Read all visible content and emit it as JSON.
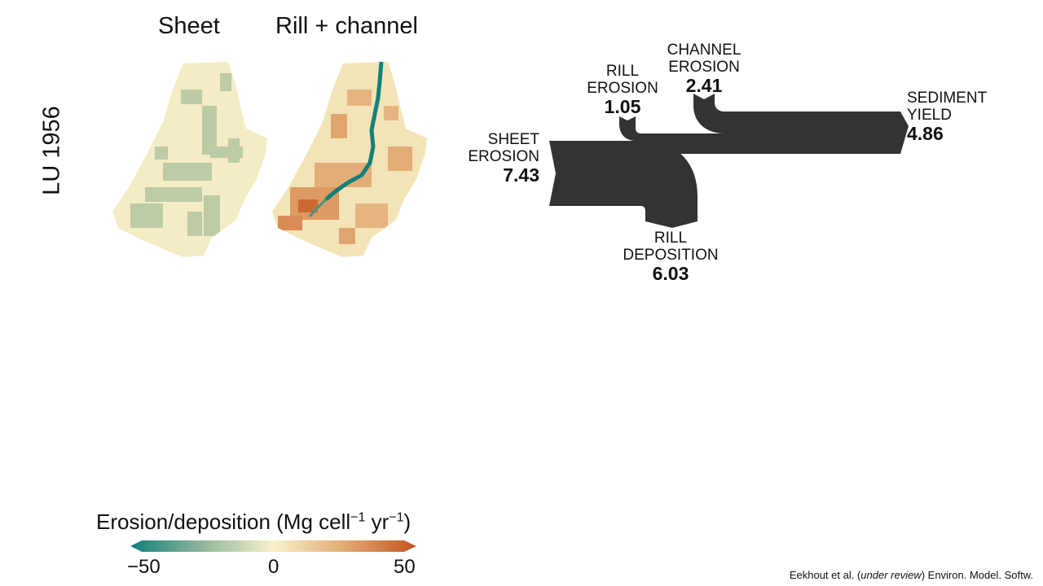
{
  "maps": {
    "row_label": "LU 1956",
    "sheet_title": "Sheet",
    "rill_title": "Rill + channel"
  },
  "flow_diagram": {
    "sheet_erosion": {
      "name": "SHEET EROSION",
      "line1": "SHEET",
      "line2": "EROSION",
      "value": 7.43,
      "value_text": "7.43"
    },
    "rill_erosion": {
      "name": "RILL EROSION",
      "line1": "RILL",
      "line2": "EROSION",
      "value": 1.05,
      "value_text": "1.05"
    },
    "channel_erosion": {
      "name": "CHANNEL EROSION",
      "line1": "CHANNEL",
      "line2": "EROSION",
      "value": 2.41,
      "value_text": "2.41"
    },
    "sediment_yield": {
      "name": "SEDIMENT YIELD",
      "line1": "SEDIMENT",
      "line2": "YIELD",
      "value": 4.86,
      "value_text": "4.86"
    },
    "rill_deposition": {
      "name": "RILL DEPOSITION",
      "line1": "RILL",
      "line2": "DEPOSITION",
      "value": 6.03,
      "value_text": "6.03"
    },
    "flow_color": "#333333"
  },
  "legend": {
    "title_main": "Erosion/deposition (Mg cell",
    "title_exp1": "−1",
    "title_mid": " yr",
    "title_exp2": "−1",
    "title_end": ")",
    "ticks": [
      "−50",
      "0",
      "50"
    ],
    "color_low": "#11807a",
    "color_mid": "#f8f2cc",
    "color_high": "#c4531f"
  },
  "citation": {
    "authors": "Eekhout et al. (",
    "status": "under review",
    "journal": ") Environ. Model. Softw."
  }
}
